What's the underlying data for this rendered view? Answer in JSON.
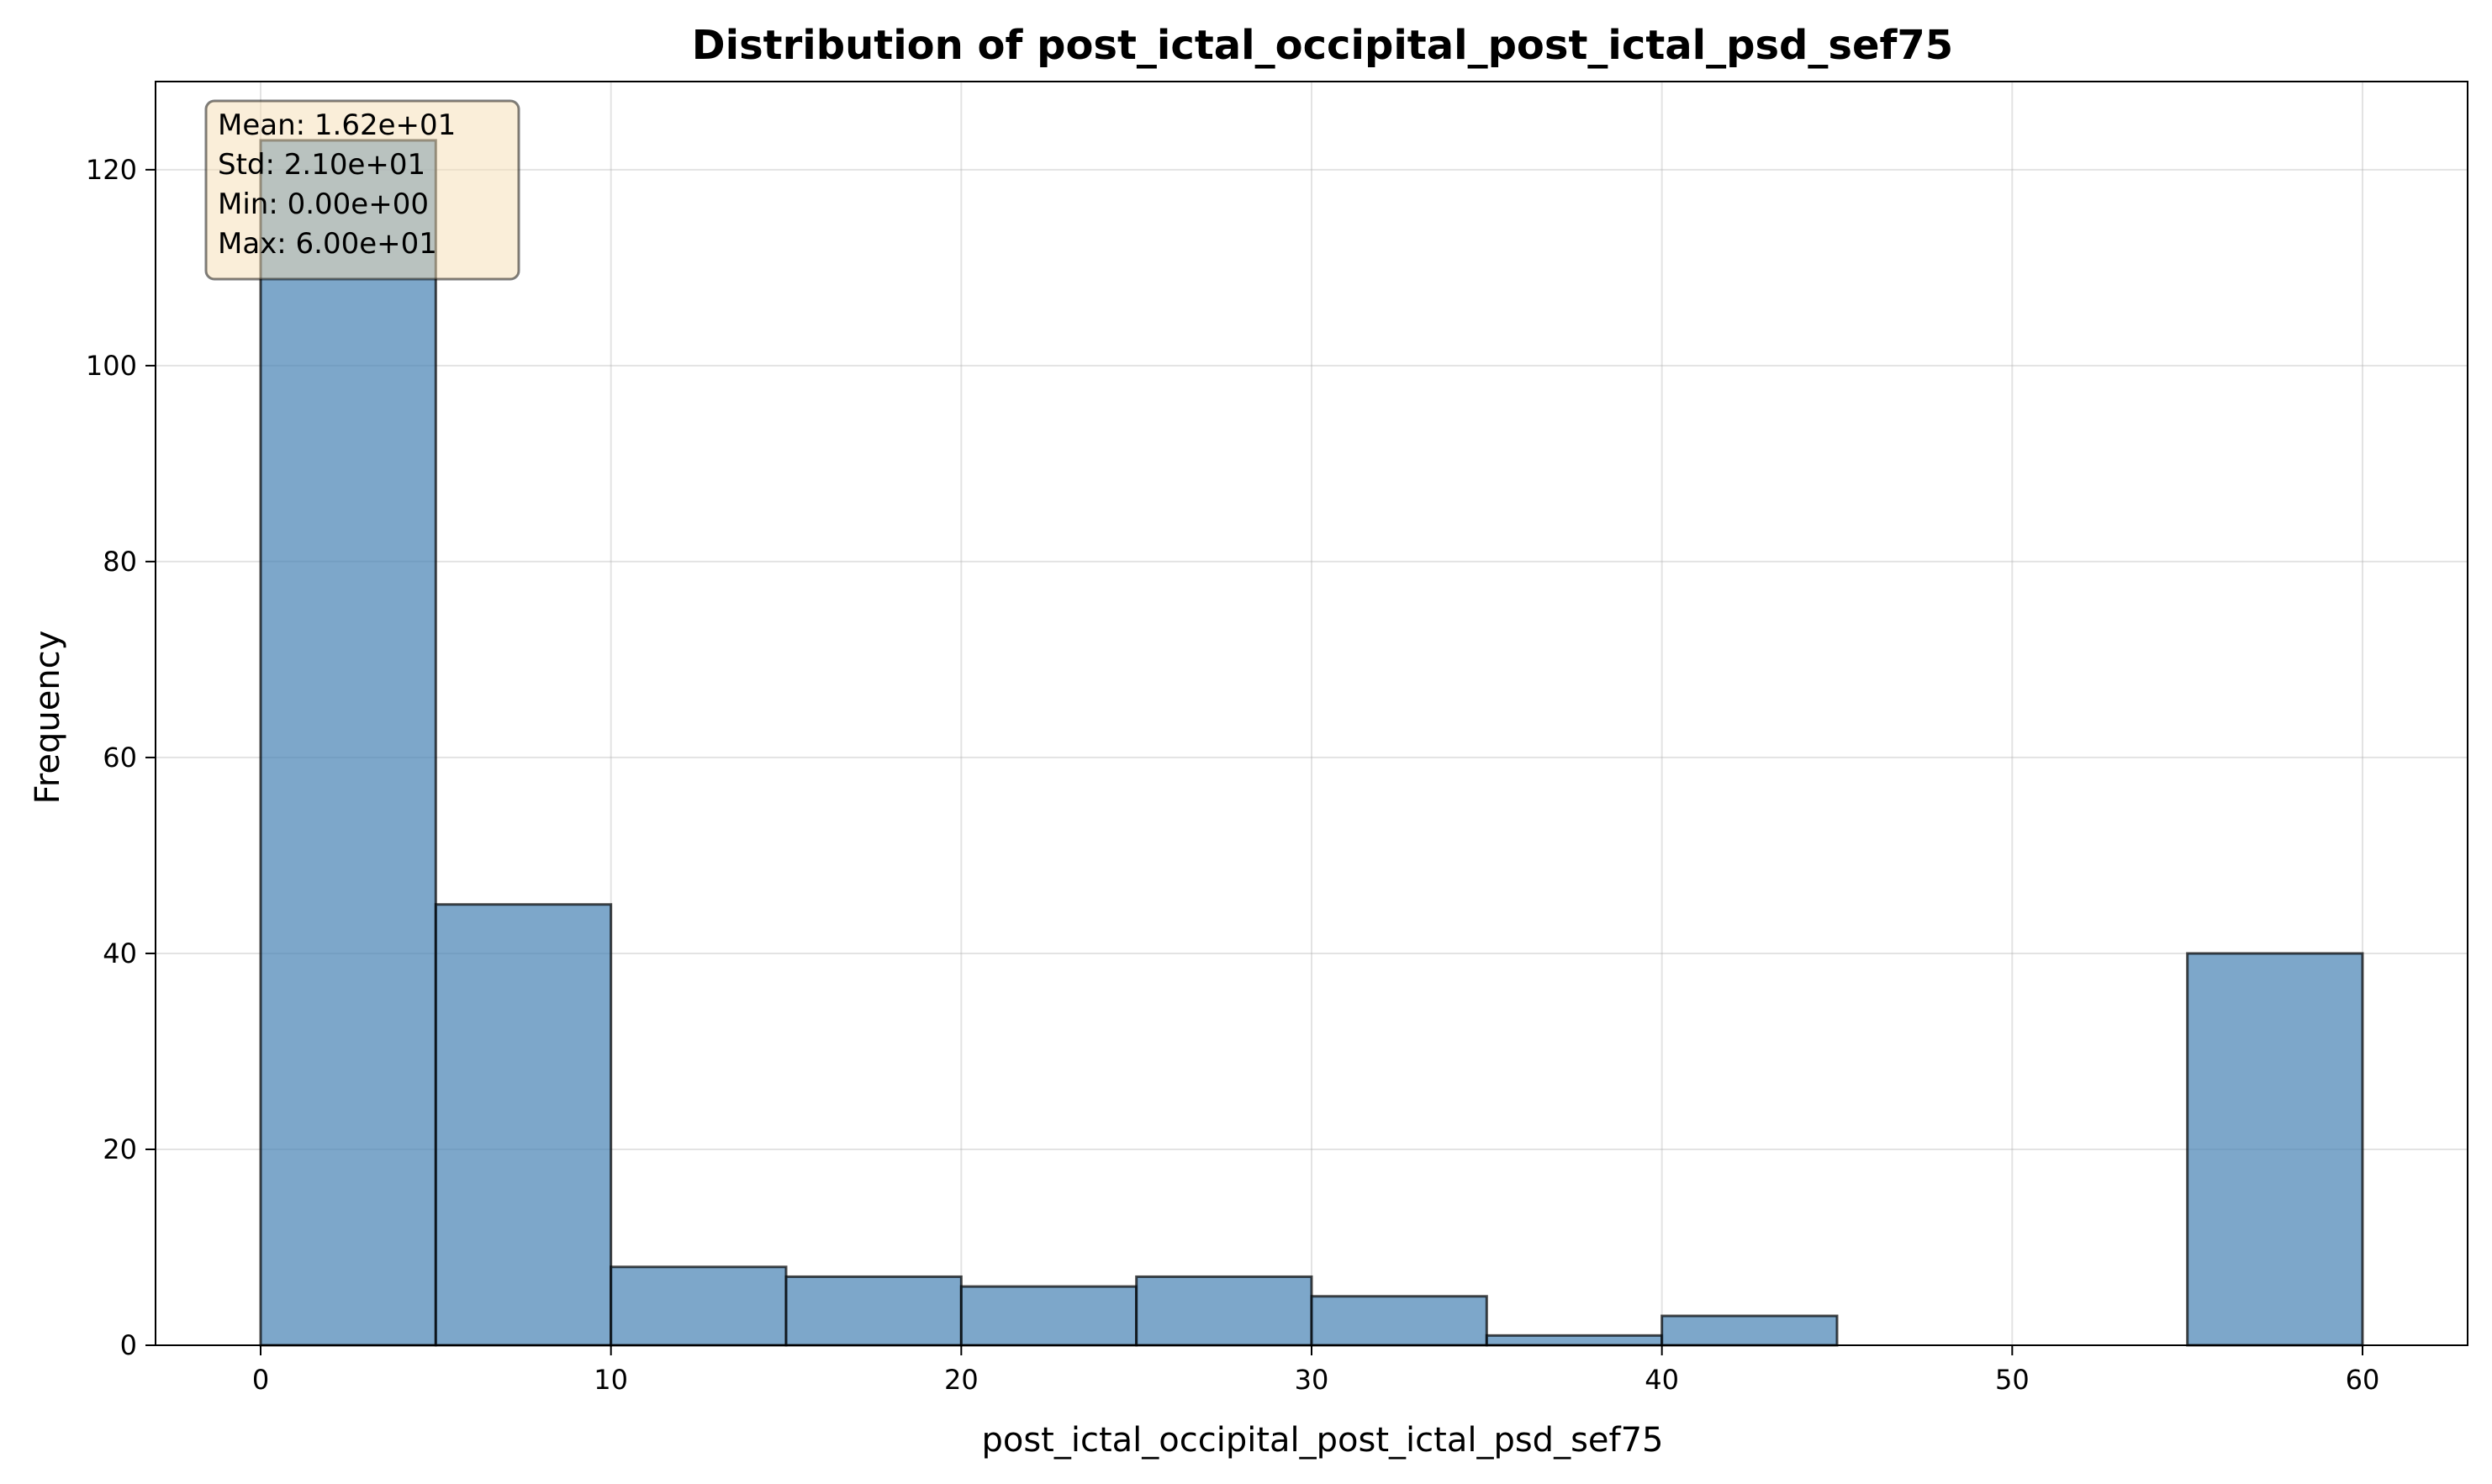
{
  "chart_data": {
    "type": "bar",
    "title": "Distribution of post_ictal_occipital_post_ictal_psd_sef75",
    "xlabel": "post_ictal_occipital_post_ictal_psd_sef75",
    "ylabel": "Frequency",
    "bins": [
      {
        "start": 0,
        "end": 5,
        "count": 123
      },
      {
        "start": 5,
        "end": 10,
        "count": 45
      },
      {
        "start": 10,
        "end": 15,
        "count": 8
      },
      {
        "start": 15,
        "end": 20,
        "count": 7
      },
      {
        "start": 20,
        "end": 25,
        "count": 6
      },
      {
        "start": 25,
        "end": 30,
        "count": 7
      },
      {
        "start": 30,
        "end": 35,
        "count": 5
      },
      {
        "start": 35,
        "end": 40,
        "count": 1
      },
      {
        "start": 40,
        "end": 45,
        "count": 3
      },
      {
        "start": 45,
        "end": 50,
        "count": 0
      },
      {
        "start": 50,
        "end": 55,
        "count": 0
      },
      {
        "start": 55,
        "end": 60,
        "count": 40
      }
    ],
    "xlim": [
      -3,
      63
    ],
    "ylim": [
      0,
      129
    ],
    "xticks": [
      0,
      10,
      20,
      30,
      40,
      50,
      60
    ],
    "yticks": [
      0,
      20,
      40,
      60,
      80,
      100,
      120
    ],
    "grid": true,
    "bar_color": "#4682b4",
    "bar_edge_color": "#000000",
    "stats_box": {
      "lines": [
        "Mean: 1.62e+01",
        "Std: 2.10e+01",
        "Min: 0.00e+00",
        "Max: 6.00e+01"
      ],
      "placement": "top-left",
      "background": "#f5deb3"
    }
  }
}
